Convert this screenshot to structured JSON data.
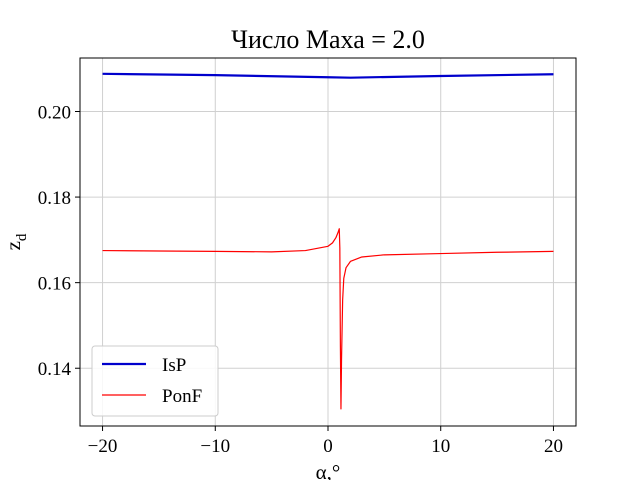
{
  "chart_data": {
    "type": "line",
    "title": "Число Маха = 2.0",
    "xlabel": "α,°",
    "ylabel": "z",
    "ylabel_sub": "d",
    "xlim": [
      -22,
      22
    ],
    "ylim": [
      0.1265,
      0.2125
    ],
    "xticks": [
      -20,
      -10,
      0,
      10,
      20
    ],
    "xtick_labels": [
      "−20",
      "−10",
      "0",
      "10",
      "20"
    ],
    "yticks": [
      0.14,
      0.16,
      0.18,
      0.2
    ],
    "ytick_labels": [
      "0.14",
      "0.16",
      "0.18",
      "0.20"
    ],
    "grid": true,
    "legend_position": "lower-left",
    "series": [
      {
        "name": "IsP",
        "color": "#0000cc",
        "x": [
          -20,
          -10,
          0,
          2,
          10,
          20
        ],
        "y": [
          0.2088,
          0.2085,
          0.208,
          0.2079,
          0.2083,
          0.2087
        ]
      },
      {
        "name": "PonF",
        "color": "#ff0000",
        "x": [
          -20,
          -15,
          -10,
          -5,
          -2,
          0,
          0.4,
          0.7,
          0.9,
          1.0,
          1.05,
          1.1,
          1.15,
          1.2,
          1.3,
          1.4,
          1.6,
          2,
          3,
          5,
          10,
          15,
          20
        ],
        "y": [
          0.1675,
          0.1674,
          0.1673,
          0.1672,
          0.1675,
          0.1685,
          0.1693,
          0.1705,
          0.1718,
          0.1726,
          0.168,
          0.145,
          0.1305,
          0.142,
          0.156,
          0.161,
          0.1635,
          0.165,
          0.166,
          0.1665,
          0.1668,
          0.1671,
          0.1673
        ]
      }
    ]
  }
}
